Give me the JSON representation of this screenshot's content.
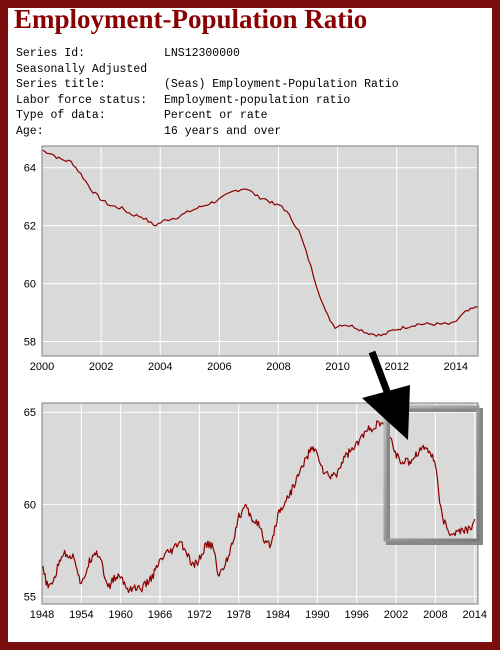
{
  "header": {
    "title": "Employment-Population Ratio",
    "meta": [
      {
        "key": "Series Id:",
        "value": "LNS12300000"
      },
      {
        "key": "Seasonally Adjusted",
        "value": ""
      },
      {
        "key": "Series title:",
        "value": "(Seas) Employment-Population Ratio"
      },
      {
        "key": "Labor force status:",
        "value": "Employment-population ratio"
      },
      {
        "key": "Type of data:",
        "value": "Percent or rate"
      },
      {
        "key": "Age:",
        "value": "16 years and over"
      }
    ]
  },
  "colors": {
    "line": "#8b0000",
    "plot_bg": "#d9d9d9",
    "frame": "#7a0d0d",
    "grid": "#ffffff"
  },
  "chart_data": [
    {
      "type": "line",
      "xlim": [
        2000,
        2014.75
      ],
      "ylim": [
        57.5,
        64.75
      ],
      "grid": true,
      "x_ticks": [
        "2000",
        "2002",
        "2004",
        "2006",
        "2008",
        "2010",
        "2012",
        "2014"
      ],
      "y_ticks": [
        "58",
        "60",
        "62",
        "64"
      ],
      "series": [
        {
          "x": [
            2000.0,
            2000.3,
            2000.6,
            2001.0,
            2001.3,
            2001.7,
            2002.0,
            2002.3,
            2002.7,
            2003.0,
            2003.4,
            2003.8,
            2004.2,
            2004.6,
            2005.0,
            2005.5,
            2006.0,
            2006.5,
            2006.9,
            2007.3,
            2007.6,
            2007.9,
            2008.1,
            2008.4,
            2008.7,
            2009.0,
            2009.3,
            2009.6,
            2009.9,
            2010.2,
            2010.6,
            2011.0,
            2011.5,
            2011.9,
            2012.3,
            2012.7,
            2013.1,
            2013.5,
            2013.9,
            2014.3,
            2014.75
          ],
          "y": [
            64.6,
            64.5,
            64.3,
            64.2,
            63.8,
            63.2,
            62.9,
            62.7,
            62.6,
            62.4,
            62.3,
            62.0,
            62.2,
            62.3,
            62.5,
            62.7,
            62.9,
            63.2,
            63.3,
            63.0,
            62.9,
            62.7,
            62.7,
            62.3,
            61.8,
            60.9,
            59.9,
            59.0,
            58.5,
            58.6,
            58.5,
            58.3,
            58.2,
            58.4,
            58.5,
            58.6,
            58.6,
            58.6,
            58.6,
            59.0,
            59.2
          ]
        }
      ]
    },
    {
      "type": "line",
      "xlim": [
        1948,
        2014.5
      ],
      "ylim": [
        54.6,
        65.5
      ],
      "grid": true,
      "x_ticks": [
        "1948",
        "1954",
        "1960",
        "1966",
        "1972",
        "1978",
        "1984",
        "1990",
        "1996",
        "2002",
        "2008",
        "2014"
      ],
      "y_ticks": [
        "55",
        "60",
        "65"
      ],
      "series": [
        {
          "x": [
            1948.0,
            1949.0,
            1950.0,
            1951.0,
            1952.0,
            1953.0,
            1954.0,
            1955.0,
            1956.0,
            1957.0,
            1958.0,
            1959.0,
            1960.0,
            1961.0,
            1962.0,
            1963.0,
            1964.0,
            1965.0,
            1966.0,
            1967.0,
            1968.0,
            1969.0,
            1970.0,
            1971.0,
            1972.0,
            1973.0,
            1974.0,
            1975.0,
            1976.0,
            1977.0,
            1978.0,
            1979.0,
            1980.0,
            1981.0,
            1982.0,
            1983.0,
            1984.0,
            1985.0,
            1986.0,
            1987.0,
            1988.0,
            1989.0,
            1990.0,
            1991.0,
            1992.0,
            1993.0,
            1994.0,
            1995.0,
            1996.0,
            1997.0,
            1998.0,
            1999.0,
            2000.0,
            2001.0,
            2002.0,
            2003.0,
            2004.0,
            2005.0,
            2006.0,
            2007.0,
            2008.0,
            2009.0,
            2010.0,
            2011.0,
            2012.0,
            2013.0,
            2014.0
          ],
          "y": [
            56.6,
            55.4,
            56.1,
            57.3,
            57.3,
            57.1,
            55.5,
            56.7,
            57.5,
            57.1,
            55.4,
            56.0,
            56.1,
            55.4,
            55.5,
            55.4,
            55.7,
            56.2,
            56.9,
            57.3,
            57.5,
            58.0,
            57.4,
            56.6,
            57.0,
            57.8,
            57.8,
            56.1,
            56.8,
            57.9,
            59.3,
            59.9,
            59.2,
            59.0,
            57.8,
            57.9,
            59.5,
            60.1,
            60.7,
            61.5,
            62.3,
            63.0,
            62.8,
            61.7,
            61.5,
            61.7,
            62.5,
            62.9,
            63.2,
            63.8,
            64.1,
            64.3,
            64.4,
            63.7,
            62.7,
            62.3,
            62.3,
            62.7,
            63.1,
            63.0,
            62.2,
            59.3,
            58.5,
            58.4,
            58.6,
            58.6,
            59.0
          ]
        }
      ]
    }
  ]
}
